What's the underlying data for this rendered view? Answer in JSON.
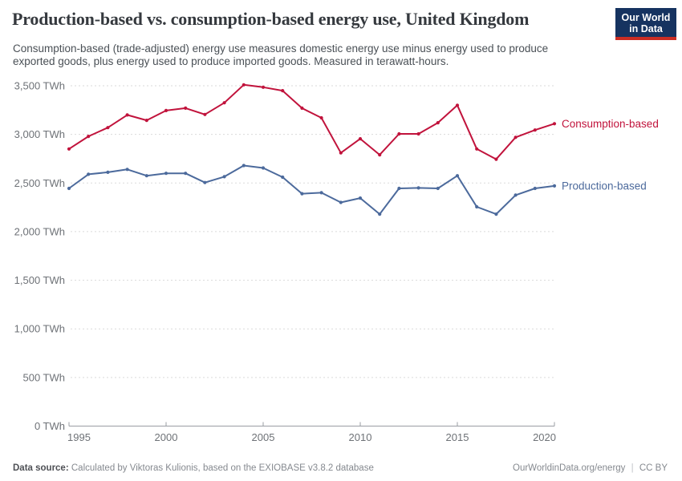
{
  "header": {
    "title": "Production-based vs. consumption-based energy use, United Kingdom",
    "subtitle_line1": "Consumption-based (trade-adjusted) energy use measures domestic energy use minus energy used to produce",
    "subtitle_line2": "exported goods, plus energy used to produce imported goods. Measured in terawatt-hours.",
    "logo": {
      "line1": "Our World",
      "line2": "in Data",
      "bg_color": "#163360",
      "stripe_color": "#CB2D23"
    }
  },
  "chart_data": {
    "type": "line",
    "title": "Production-based vs. consumption-based energy use, United Kingdom",
    "unit": "TWh",
    "x": [
      1995,
      1996,
      1997,
      1998,
      1999,
      2000,
      2001,
      2002,
      2003,
      2004,
      2005,
      2006,
      2007,
      2008,
      2009,
      2010,
      2011,
      2012,
      2013,
      2014,
      2015,
      2016,
      2017,
      2018,
      2019,
      2020
    ],
    "series": [
      {
        "name": "Consumption-based",
        "color": "#C1133C",
        "values": [
          2850,
          2980,
          3070,
          3200,
          3145,
          3245,
          3270,
          3205,
          3325,
          3510,
          3485,
          3450,
          3270,
          3170,
          2810,
          2955,
          2790,
          3005,
          3005,
          3120,
          3300,
          2850,
          2745,
          2970,
          3045,
          3110
        ]
      },
      {
        "name": "Production-based",
        "color": "#4C6A9C",
        "values": [
          2445,
          2590,
          2610,
          2640,
          2575,
          2600,
          2600,
          2505,
          2565,
          2680,
          2655,
          2560,
          2390,
          2400,
          2300,
          2345,
          2180,
          2445,
          2450,
          2445,
          2575,
          2255,
          2180,
          2375,
          2445,
          2470
        ]
      }
    ],
    "ylim": [
      0,
      3500
    ],
    "yticks": [
      0,
      500,
      1000,
      1500,
      2000,
      2500,
      3000,
      3500
    ],
    "ytick_labels": [
      "0 TWh",
      "500 TWh",
      "1,000 TWh",
      "1,500 TWh",
      "2,000 TWh",
      "2,500 TWh",
      "3,000 TWh",
      "3,500 TWh"
    ],
    "xticks": [
      1995,
      2000,
      2005,
      2010,
      2015,
      2020
    ],
    "xtick_labels": [
      "1995",
      "2000",
      "2005",
      "2010",
      "2015",
      "2020"
    ],
    "grid": "horizontal-dashed",
    "legend_position": "line-end-labels"
  },
  "footer": {
    "source_label": "Data source:",
    "source_text": "Calculated by Viktoras Kulionis, based on the EXIOBASE v3.8.2 database",
    "right_link": "OurWorldinData.org/energy",
    "separator": "|",
    "license": "CC BY"
  }
}
